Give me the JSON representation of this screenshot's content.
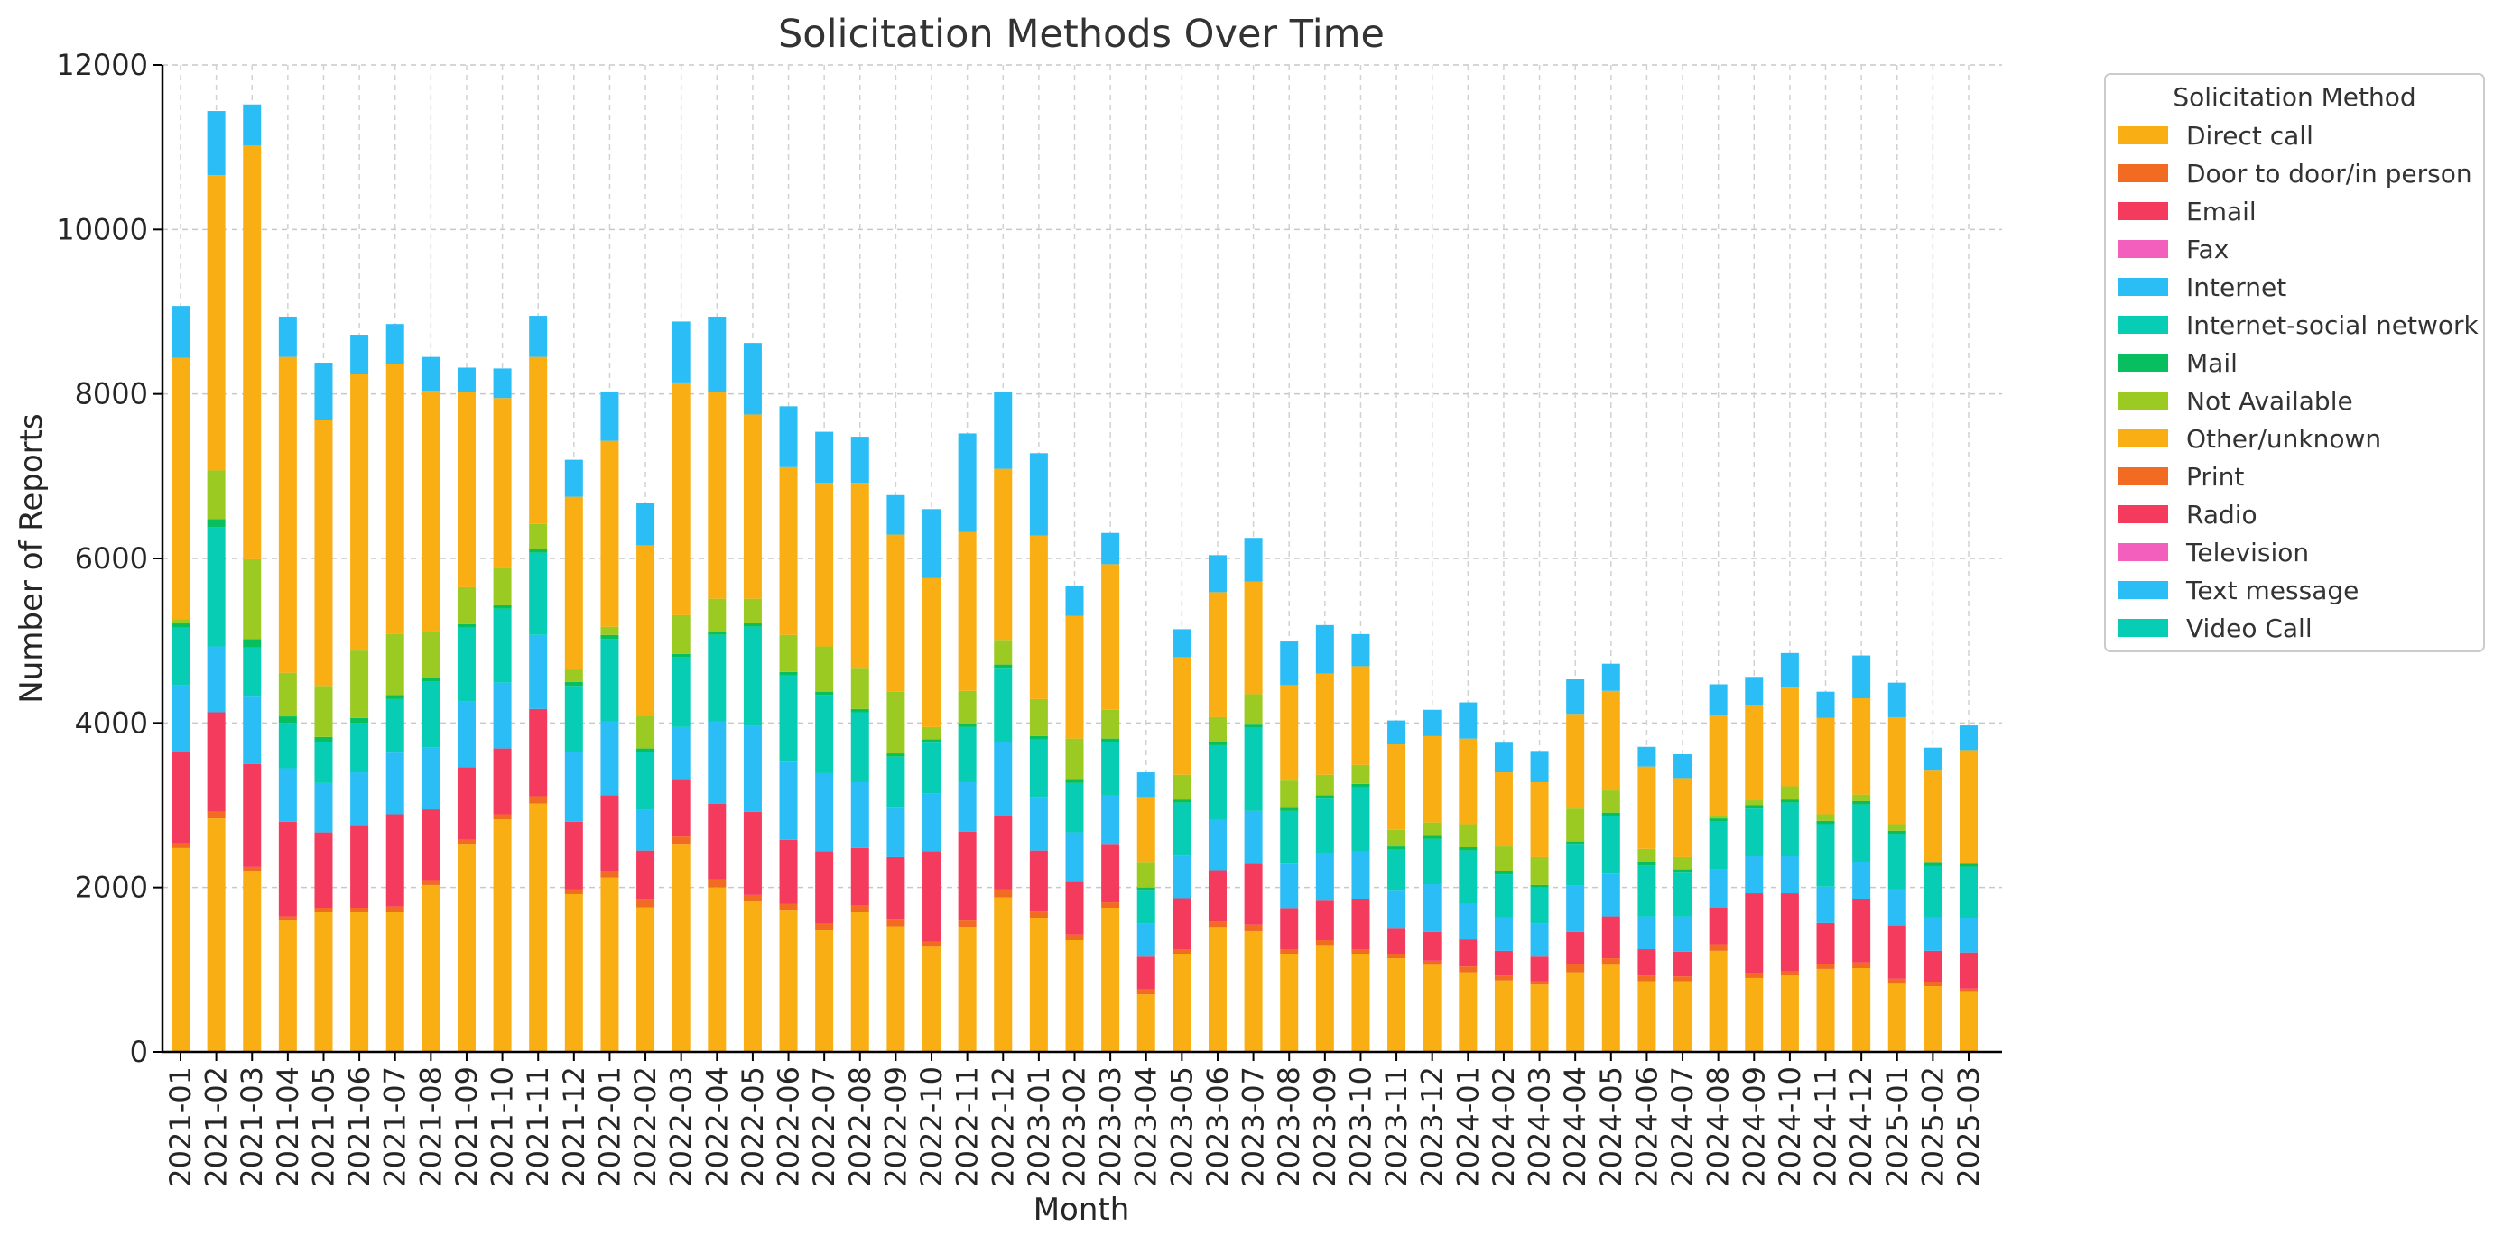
{
  "chart_data": {
    "type": "bar",
    "stacked": true,
    "title": "Solicitation Methods Over Time",
    "xlabel": "Month",
    "ylabel": "Number of Reports",
    "ylim": [
      0,
      12000
    ],
    "yticks": [
      0,
      2000,
      4000,
      6000,
      8000,
      10000,
      12000
    ],
    "grid": true,
    "legend_title": "Solicitation Method",
    "legend_placement": "outside-upper-right",
    "categories": [
      "2021-01",
      "2021-02",
      "2021-03",
      "2021-04",
      "2021-05",
      "2021-06",
      "2021-07",
      "2021-08",
      "2021-09",
      "2021-10",
      "2021-11",
      "2021-12",
      "2022-01",
      "2022-02",
      "2022-03",
      "2022-04",
      "2022-05",
      "2022-06",
      "2022-07",
      "2022-08",
      "2022-09",
      "2022-10",
      "2022-11",
      "2022-12",
      "2023-01",
      "2023-02",
      "2023-03",
      "2023-04",
      "2023-05",
      "2023-06",
      "2023-07",
      "2023-08",
      "2023-09",
      "2023-10",
      "2023-11",
      "2023-12",
      "2024-01",
      "2024-02",
      "2024-03",
      "2024-04",
      "2024-05",
      "2024-06",
      "2024-07",
      "2024-08",
      "2024-09",
      "2024-10",
      "2024-11",
      "2024-12",
      "2025-01",
      "2025-02",
      "2025-03"
    ],
    "series": [
      {
        "name": "Direct call",
        "color": "#f9ae14",
        "values": [
          2480,
          2840,
          2200,
          1600,
          1700,
          1700,
          1700,
          2030,
          2520,
          2830,
          3020,
          1920,
          2120,
          1760,
          2520,
          2000,
          1830,
          1720,
          1480,
          1700,
          1530,
          1280,
          1520,
          1880,
          1630,
          1360,
          1750,
          700,
          1190,
          1510,
          1470,
          1190,
          1290,
          1190,
          1140,
          1060,
          970,
          870,
          820,
          970,
          1060,
          860,
          860,
          1230,
          900,
          930,
          1010,
          1020,
          830,
          800,
          730
        ]
      },
      {
        "name": "Door to door/in person",
        "color": "#f26b23",
        "values": [
          60,
          80,
          50,
          50,
          50,
          50,
          70,
          60,
          60,
          60,
          90,
          60,
          80,
          90,
          100,
          100,
          80,
          80,
          80,
          80,
          80,
          60,
          80,
          100,
          80,
          70,
          70,
          60,
          60,
          80,
          80,
          60,
          70,
          60,
          50,
          50,
          70,
          60,
          40,
          100,
          80,
          70,
          60,
          80,
          50,
          50,
          60,
          70,
          60,
          50,
          40
        ]
      },
      {
        "name": "Email",
        "color": "#f43a5d",
        "values": [
          1110,
          1210,
          1250,
          1150,
          920,
          1000,
          1120,
          860,
          880,
          800,
          1060,
          820,
          920,
          600,
          690,
          920,
          1010,
          780,
          880,
          700,
          760,
          1100,
          1080,
          890,
          740,
          640,
          700,
          400,
          620,
          620,
          740,
          490,
          480,
          610,
          310,
          350,
          330,
          300,
          300,
          390,
          510,
          320,
          300,
          440,
          980,
          950,
          500,
          770,
          650,
          380,
          440
        ]
      },
      {
        "name": "Fax",
        "color": "#f35fbd",
        "values": [
          0,
          0,
          0,
          0,
          0,
          0,
          0,
          0,
          0,
          0,
          0,
          0,
          0,
          0,
          0,
          0,
          0,
          0,
          0,
          0,
          0,
          0,
          0,
          0,
          0,
          0,
          0,
          0,
          0,
          0,
          0,
          0,
          0,
          0,
          0,
          0,
          0,
          0,
          0,
          0,
          0,
          0,
          0,
          0,
          0,
          0,
          0,
          0,
          0,
          0,
          0
        ]
      },
      {
        "name": "Internet",
        "color": "#2bbdf5",
        "values": [
          810,
          800,
          820,
          650,
          600,
          650,
          750,
          750,
          800,
          800,
          900,
          850,
          900,
          500,
          640,
          1000,
          1050,
          950,
          950,
          800,
          600,
          700,
          600,
          900,
          650,
          600,
          600,
          400,
          520,
          620,
          640,
          550,
          580,
          580,
          460,
          580,
          430,
          410,
          400,
          560,
          520,
          400,
          430,
          470,
          450,
          450,
          440,
          450,
          440,
          410,
          420
        ]
      },
      {
        "name": "Internet-social network",
        "color": "#08cdb5",
        "values": [
          700,
          1450,
          600,
          550,
          500,
          600,
          650,
          800,
          900,
          900,
          1000,
          800,
          1000,
          700,
          850,
          1050,
          1200,
          1050,
          950,
          850,
          620,
          620,
          670,
          900,
          700,
          600,
          650,
          400,
          640,
          900,
          1010,
          640,
          660,
          780,
          500,
          550,
          650,
          520,
          440,
          500,
          700,
          620,
          530,
          580,
          580,
          650,
          760,
          700,
          670,
          620,
          620
        ]
      },
      {
        "name": "Mail",
        "color": "#08bf5f",
        "values": [
          50,
          100,
          100,
          80,
          60,
          60,
          50,
          50,
          40,
          40,
          50,
          50,
          50,
          40,
          40,
          40,
          40,
          40,
          40,
          40,
          40,
          40,
          40,
          40,
          40,
          40,
          40,
          40,
          40,
          40,
          40,
          40,
          40,
          40,
          40,
          40,
          40,
          40,
          30,
          40,
          40,
          40,
          40,
          40,
          40,
          40,
          40,
          40,
          40,
          40,
          40
        ]
      },
      {
        "name": "Not Available",
        "color": "#9bca23",
        "values": [
          50,
          590,
          970,
          530,
          620,
          820,
          740,
          570,
          450,
          450,
          300,
          150,
          100,
          400,
          470,
          400,
          300,
          450,
          550,
          500,
          750,
          150,
          400,
          300,
          450,
          500,
          350,
          300,
          300,
          300,
          370,
          330,
          250,
          230,
          200,
          160,
          280,
          300,
          340,
          400,
          270,
          160,
          150,
          30,
          60,
          160,
          80,
          80,
          80,
          0,
          0
        ]
      },
      {
        "name": "Other/unknown",
        "color": "#f9ae14",
        "values": [
          3180,
          3590,
          5030,
          3840,
          3230,
          3360,
          3280,
          2920,
          2370,
          2070,
          2030,
          2100,
          2260,
          2070,
          2830,
          2510,
          2240,
          2040,
          1990,
          2250,
          1910,
          1810,
          1930,
          2080,
          1990,
          1490,
          1770,
          800,
          1430,
          1520,
          1370,
          1160,
          1230,
          1200,
          1040,
          1050,
          1040,
          900,
          910,
          1150,
          1210,
          1000,
          960,
          1230,
          1160,
          1200,
          1170,
          1170,
          1300,
          1120,
          1380
        ]
      },
      {
        "name": "Print",
        "color": "#f26b23",
        "values": [
          0,
          0,
          0,
          0,
          0,
          0,
          0,
          0,
          0,
          0,
          0,
          0,
          0,
          0,
          0,
          0,
          0,
          0,
          0,
          0,
          0,
          0,
          0,
          0,
          0,
          0,
          0,
          0,
          0,
          0,
          0,
          0,
          0,
          0,
          0,
          0,
          0,
          0,
          0,
          0,
          0,
          0,
          0,
          0,
          0,
          0,
          0,
          0,
          0,
          0,
          0
        ]
      },
      {
        "name": "Radio",
        "color": "#f43a5d",
        "values": [
          0,
          0,
          0,
          0,
          0,
          0,
          0,
          0,
          0,
          0,
          0,
          0,
          0,
          0,
          0,
          0,
          0,
          0,
          0,
          0,
          0,
          0,
          0,
          0,
          0,
          0,
          0,
          0,
          0,
          0,
          0,
          0,
          0,
          0,
          0,
          0,
          0,
          0,
          0,
          0,
          0,
          0,
          0,
          0,
          0,
          0,
          0,
          0,
          0,
          0,
          0
        ]
      },
      {
        "name": "Television",
        "color": "#f35fbd",
        "values": [
          0,
          0,
          0,
          0,
          0,
          0,
          0,
          0,
          0,
          0,
          0,
          0,
          0,
          0,
          0,
          0,
          0,
          0,
          0,
          0,
          0,
          0,
          0,
          0,
          0,
          0,
          0,
          0,
          0,
          0,
          0,
          0,
          0,
          0,
          0,
          0,
          0,
          0,
          0,
          0,
          0,
          0,
          0,
          0,
          0,
          0,
          0,
          0,
          0,
          0,
          0
        ]
      },
      {
        "name": "Text message",
        "color": "#2bbdf5",
        "values": [
          630,
          780,
          500,
          490,
          700,
          480,
          490,
          410,
          300,
          360,
          500,
          450,
          600,
          520,
          740,
          920,
          870,
          740,
          620,
          560,
          480,
          840,
          1200,
          930,
          1000,
          370,
          380,
          300,
          340,
          450,
          530,
          530,
          590,
          390,
          290,
          320,
          440,
          360,
          380,
          420,
          330,
          240,
          290,
          370,
          340,
          420,
          320,
          520,
          420,
          280,
          300
        ]
      },
      {
        "name": "Video Call",
        "color": "#08cdb5",
        "values": [
          0,
          0,
          0,
          0,
          0,
          0,
          0,
          0,
          0,
          0,
          0,
          0,
          0,
          0,
          0,
          0,
          0,
          0,
          0,
          0,
          0,
          0,
          0,
          0,
          0,
          0,
          0,
          0,
          0,
          0,
          0,
          0,
          0,
          0,
          0,
          0,
          0,
          0,
          0,
          0,
          0,
          0,
          0,
          0,
          0,
          0,
          0,
          0,
          0,
          0,
          0
        ]
      }
    ]
  }
}
